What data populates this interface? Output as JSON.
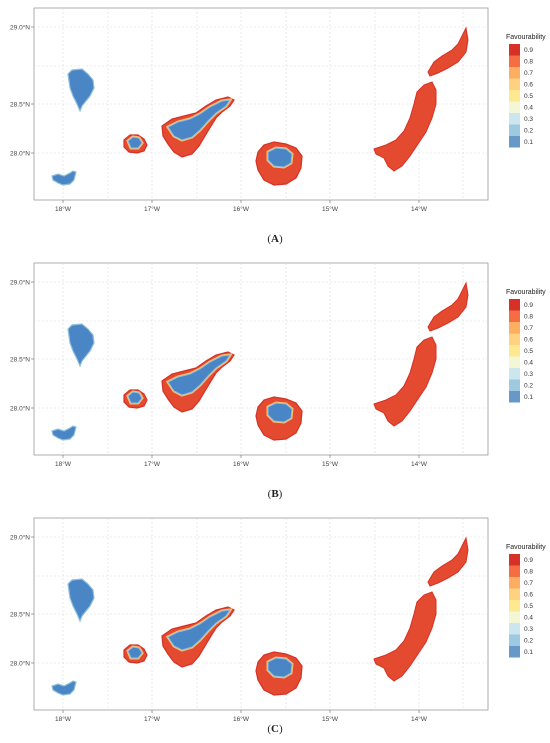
{
  "x_ticks": [
    "18°W",
    "17°W",
    "16°W",
    "15°W",
    "14°W"
  ],
  "y_ticks": [
    "29.0°N",
    "28.5°N",
    "28.0°N"
  ],
  "legend": {
    "title": "Favourability",
    "levels": [
      {
        "label": "0.9",
        "color": "#d73027"
      },
      {
        "label": "0.8",
        "color": "#f46d43"
      },
      {
        "label": "0.7",
        "color": "#fdae61"
      },
      {
        "label": "0.6",
        "color": "#fed27f"
      },
      {
        "label": "0.5",
        "color": "#fee990"
      },
      {
        "label": "0.4",
        "color": "#f3f7d6"
      },
      {
        "label": "0.3",
        "color": "#cce6ef"
      },
      {
        "label": "0.2",
        "color": "#9ecae1"
      },
      {
        "label": "0.1",
        "color": "#6699c7"
      }
    ]
  },
  "panels": [
    {
      "id": "A",
      "caption_open": "(",
      "caption_letter": "A",
      "caption_close": ")"
    },
    {
      "id": "B",
      "caption_open": "(",
      "caption_letter": "B",
      "caption_close": ")"
    },
    {
      "id": "C",
      "caption_open": "(",
      "caption_letter": "C",
      "caption_close": ")"
    }
  ],
  "colors": {
    "low": "#4a86c5",
    "low_edge": "#8fbfdc",
    "mid": "#fdbf6f",
    "high": "#e34a2f",
    "high_dark": "#d73027"
  }
}
